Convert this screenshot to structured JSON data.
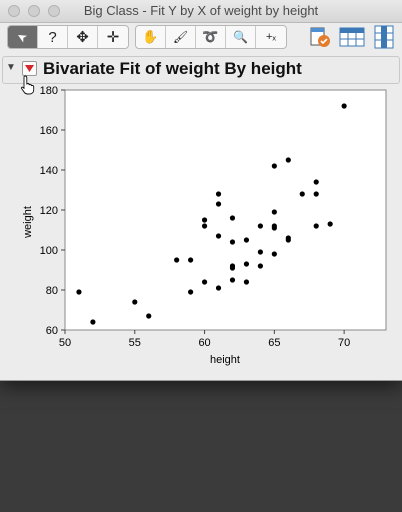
{
  "window": {
    "title": "Big Class - Fit Y by X of weight by height"
  },
  "toolbar": {
    "tools": [
      {
        "name": "arrow-tool",
        "glyph": "➤"
      },
      {
        "name": "help-tool",
        "glyph": "?"
      },
      {
        "name": "selection-tool",
        "glyph": "✥"
      },
      {
        "name": "crosshair-tool",
        "glyph": "✛"
      },
      {
        "name": "grabber-tool",
        "glyph": "✋"
      },
      {
        "name": "brush-tool",
        "glyph": "🖌"
      },
      {
        "name": "lasso-tool",
        "glyph": "➰"
      },
      {
        "name": "magnifier-tool",
        "glyph": "🔍"
      },
      {
        "name": "annotate-tool",
        "glyph": "+ₓ"
      }
    ]
  },
  "report": {
    "outline_title": "Bivariate Fit of weight By height",
    "disclosure_icon": "triangle-down-icon",
    "hotspot_icon": "red-triangle-icon"
  },
  "colors": {
    "hotspot": "#d4262b",
    "marker": "#000000",
    "plot_bg": "#ffffff"
  },
  "chart_data": {
    "type": "scatter",
    "title": "",
    "xlabel": "height",
    "ylabel": "weight",
    "xlim": [
      50,
      73
    ],
    "ylim": [
      60,
      180
    ],
    "xticks": [
      50,
      55,
      60,
      65,
      70
    ],
    "yticks": [
      60,
      80,
      100,
      120,
      140,
      160,
      180
    ],
    "grid": false,
    "points": [
      {
        "x": 51,
        "y": 79
      },
      {
        "x": 52,
        "y": 64
      },
      {
        "x": 55,
        "y": 74
      },
      {
        "x": 56,
        "y": 67
      },
      {
        "x": 58,
        "y": 95
      },
      {
        "x": 59,
        "y": 95
      },
      {
        "x": 59,
        "y": 79
      },
      {
        "x": 60,
        "y": 115
      },
      {
        "x": 60,
        "y": 112
      },
      {
        "x": 60,
        "y": 84
      },
      {
        "x": 61,
        "y": 128
      },
      {
        "x": 61,
        "y": 123
      },
      {
        "x": 61,
        "y": 107
      },
      {
        "x": 61,
        "y": 81
      },
      {
        "x": 62,
        "y": 116
      },
      {
        "x": 62,
        "y": 104
      },
      {
        "x": 62,
        "y": 92
      },
      {
        "x": 62,
        "y": 91
      },
      {
        "x": 62,
        "y": 85
      },
      {
        "x": 63,
        "y": 105
      },
      {
        "x": 63,
        "y": 93
      },
      {
        "x": 63,
        "y": 84
      },
      {
        "x": 64,
        "y": 112
      },
      {
        "x": 64,
        "y": 99
      },
      {
        "x": 64,
        "y": 92
      },
      {
        "x": 65,
        "y": 142
      },
      {
        "x": 65,
        "y": 119
      },
      {
        "x": 65,
        "y": 112
      },
      {
        "x": 65,
        "y": 111
      },
      {
        "x": 65,
        "y": 98
      },
      {
        "x": 66,
        "y": 145
      },
      {
        "x": 66,
        "y": 106
      },
      {
        "x": 66,
        "y": 105
      },
      {
        "x": 67,
        "y": 128
      },
      {
        "x": 68,
        "y": 134
      },
      {
        "x": 68,
        "y": 128
      },
      {
        "x": 68,
        "y": 112
      },
      {
        "x": 69,
        "y": 113
      },
      {
        "x": 70,
        "y": 172
      }
    ]
  }
}
